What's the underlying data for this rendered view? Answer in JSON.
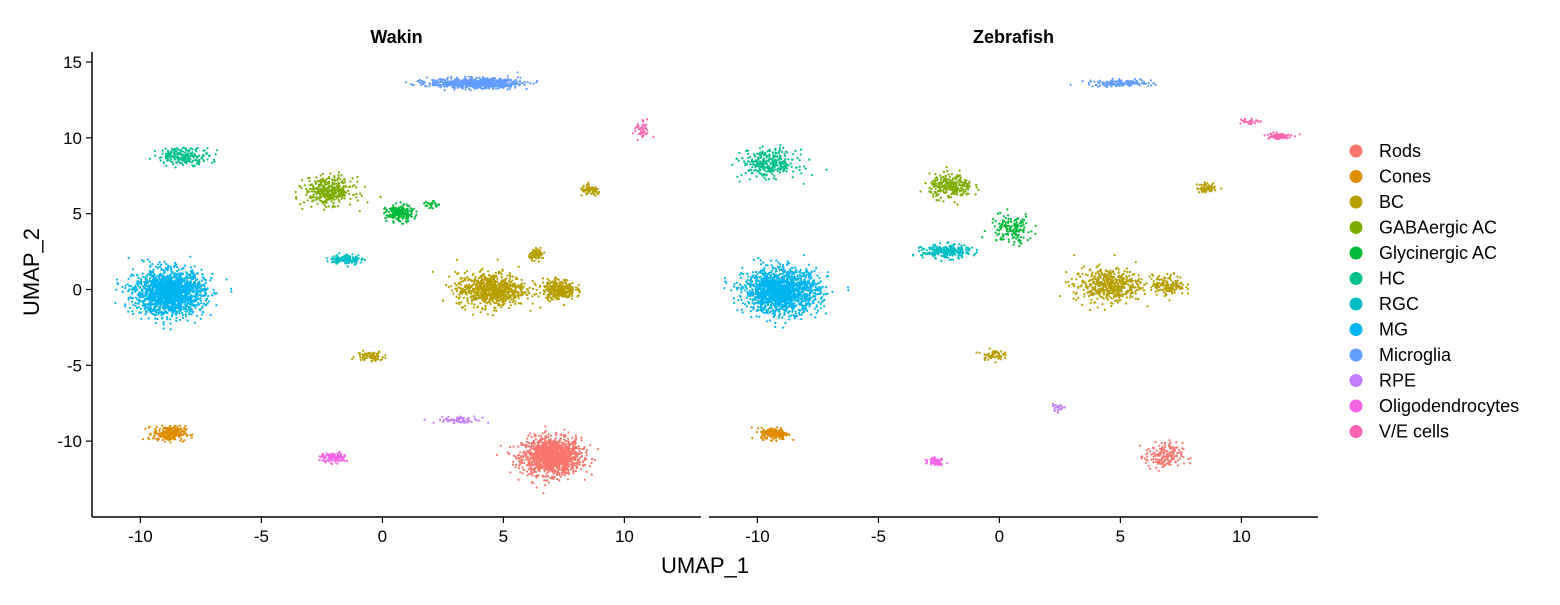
{
  "chart_data": {
    "type": "scatter",
    "xlabel": "UMAP_1",
    "ylabel": "UMAP_2",
    "xlim": [
      -12,
      13
    ],
    "ylim": [
      -15,
      16
    ],
    "x_ticks": [
      -10,
      -5,
      0,
      5,
      10
    ],
    "y_ticks": [
      15,
      10,
      5,
      0,
      -5,
      -10
    ],
    "x_tick_labels": [
      "-10",
      "-5",
      "0",
      "5",
      "10"
    ],
    "y_tick_labels": [
      "15",
      "10",
      "5",
      "0",
      "-5",
      "-10"
    ],
    "grid": false,
    "legend_position": "right",
    "legend": [
      {
        "name": "Rods",
        "color": "#F8766D"
      },
      {
        "name": "Cones",
        "color": "#DE8C00"
      },
      {
        "name": "BC",
        "color": "#B79F00"
      },
      {
        "name": "GABAergic AC",
        "color": "#7CAE00"
      },
      {
        "name": "Glycinergic AC",
        "color": "#00BA38"
      },
      {
        "name": "HC",
        "color": "#00C08B"
      },
      {
        "name": "RGC",
        "color": "#00BFC4"
      },
      {
        "name": "MG",
        "color": "#00B4F0"
      },
      {
        "name": "Microglia",
        "color": "#619CFF"
      },
      {
        "name": "RPE",
        "color": "#C77CFF"
      },
      {
        "name": "Oligodendrocytes",
        "color": "#F564E3"
      },
      {
        "name": "V/E cells",
        "color": "#FF64B0"
      }
    ],
    "panels": [
      {
        "title": "Wakin",
        "clusters": [
          {
            "type": "Rods",
            "center": [
              7.0,
              -11.0
            ],
            "spread": [
              1.1,
              1.1
            ],
            "n": 1400
          },
          {
            "type": "Cones",
            "center": [
              -8.8,
              -9.5
            ],
            "spread": [
              0.6,
              0.45
            ],
            "n": 250
          },
          {
            "type": "BC",
            "center": [
              4.5,
              0.0
            ],
            "spread": [
              1.3,
              1.0
            ],
            "n": 800
          },
          {
            "type": "BC",
            "center": [
              7.3,
              0.0
            ],
            "spread": [
              0.6,
              0.6
            ],
            "n": 300
          },
          {
            "type": "BC",
            "center": [
              6.4,
              2.3
            ],
            "spread": [
              0.3,
              0.3
            ],
            "n": 80
          },
          {
            "type": "BC",
            "center": [
              8.6,
              6.5
            ],
            "spread": [
              0.4,
              0.3
            ],
            "n": 80
          },
          {
            "type": "BC",
            "center": [
              -0.5,
              -4.4
            ],
            "spread": [
              0.5,
              0.3
            ],
            "n": 80
          },
          {
            "type": "GABAergic AC",
            "center": [
              -2.2,
              6.5
            ],
            "spread": [
              0.9,
              0.8
            ],
            "n": 400
          },
          {
            "type": "Glycinergic AC",
            "center": [
              0.7,
              5.0
            ],
            "spread": [
              0.5,
              0.5
            ],
            "n": 200
          },
          {
            "type": "Glycinergic AC",
            "center": [
              2.0,
              5.6
            ],
            "spread": [
              0.3,
              0.2
            ],
            "n": 30
          },
          {
            "type": "HC",
            "center": [
              -8.2,
              8.8
            ],
            "spread": [
              1.0,
              0.5
            ],
            "n": 220
          },
          {
            "type": "RGC",
            "center": [
              -1.5,
              2.0
            ],
            "spread": [
              0.6,
              0.3
            ],
            "n": 120
          },
          {
            "type": "MG",
            "center": [
              -8.8,
              -0.2
            ],
            "spread": [
              1.3,
              1.3
            ],
            "n": 1800
          },
          {
            "type": "Microglia",
            "center": [
              3.8,
              13.6
            ],
            "spread": [
              1.7,
              0.3
            ],
            "n": 700
          },
          {
            "type": "RPE",
            "center": [
              3.2,
              -8.6
            ],
            "spread": [
              0.9,
              0.2
            ],
            "n": 70
          },
          {
            "type": "Oligodendrocytes",
            "center": [
              -2.0,
              -11.1
            ],
            "spread": [
              0.5,
              0.3
            ],
            "n": 100
          },
          {
            "type": "V/E cells",
            "center": [
              10.7,
              10.5
            ],
            "spread": [
              0.3,
              0.6
            ],
            "n": 40
          }
        ]
      },
      {
        "title": "Zebrafish",
        "clusters": [
          {
            "type": "Rods",
            "center": [
              6.8,
              -11.0
            ],
            "spread": [
              0.7,
              0.8
            ],
            "n": 180
          },
          {
            "type": "Cones",
            "center": [
              -9.3,
              -9.5
            ],
            "spread": [
              0.5,
              0.35
            ],
            "n": 200
          },
          {
            "type": "BC",
            "center": [
              4.5,
              0.3
            ],
            "spread": [
              1.3,
              1.0
            ],
            "n": 500
          },
          {
            "type": "BC",
            "center": [
              7.0,
              0.3
            ],
            "spread": [
              0.6,
              0.6
            ],
            "n": 150
          },
          {
            "type": "BC",
            "center": [
              8.6,
              6.7
            ],
            "spread": [
              0.4,
              0.3
            ],
            "n": 60
          },
          {
            "type": "BC",
            "center": [
              -0.3,
              -4.3
            ],
            "spread": [
              0.4,
              0.3
            ],
            "n": 60
          },
          {
            "type": "GABAergic AC",
            "center": [
              -2.0,
              6.8
            ],
            "spread": [
              0.8,
              0.7
            ],
            "n": 280
          },
          {
            "type": "Glycinergic AC",
            "center": [
              0.5,
              4.0
            ],
            "spread": [
              0.8,
              0.9
            ],
            "n": 150
          },
          {
            "type": "HC",
            "center": [
              -9.5,
              8.3
            ],
            "spread": [
              1.0,
              0.8
            ],
            "n": 320
          },
          {
            "type": "RGC",
            "center": [
              -2.2,
              2.5
            ],
            "spread": [
              0.9,
              0.4
            ],
            "n": 260
          },
          {
            "type": "MG",
            "center": [
              -9.0,
              -0.1
            ],
            "spread": [
              1.4,
              1.3
            ],
            "n": 1600
          },
          {
            "type": "Microglia",
            "center": [
              5.0,
              13.6
            ],
            "spread": [
              1.2,
              0.2
            ],
            "n": 150
          },
          {
            "type": "RPE",
            "center": [
              2.4,
              -7.8
            ],
            "spread": [
              0.3,
              0.2
            ],
            "n": 25
          },
          {
            "type": "Oligodendrocytes",
            "center": [
              -2.6,
              -11.3
            ],
            "spread": [
              0.3,
              0.25
            ],
            "n": 60
          },
          {
            "type": "V/E cells",
            "center": [
              10.3,
              11.1
            ],
            "spread": [
              0.35,
              0.2
            ],
            "n": 30
          },
          {
            "type": "V/E cells",
            "center": [
              11.5,
              10.1
            ],
            "spread": [
              0.5,
              0.2
            ],
            "n": 80
          }
        ]
      }
    ]
  }
}
